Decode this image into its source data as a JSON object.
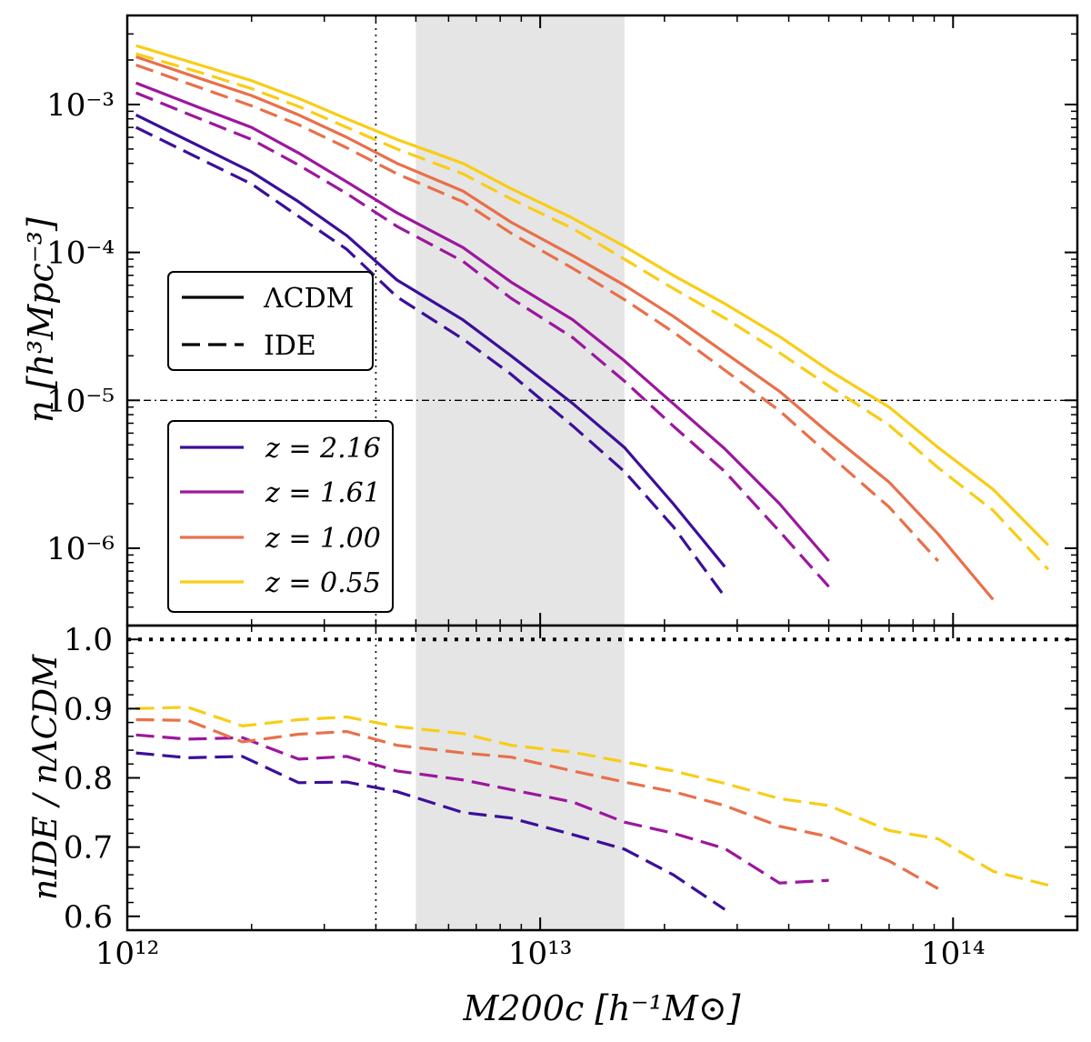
{
  "chart_data": [
    {
      "type": "line",
      "panel": "top",
      "ylabel": "n [h³Mpc⁻³]",
      "xscale": "log",
      "yscale": "log",
      "xlim": [
        1000000000000.0,
        200000000000000.0
      ],
      "ylim": [
        3e-07,
        0.004
      ],
      "y_tick_labels": [
        "10⁻⁶",
        "10⁻⁵",
        "10⁻⁴",
        "10⁻³"
      ],
      "y_ticks": [
        1e-06,
        1e-05,
        0.0001,
        0.001
      ],
      "hline": 1e-05,
      "vline": 4000000000000.0,
      "shaded_x": [
        5000000000000.0,
        16000000000000.0
      ],
      "style_legend": {
        "placement": "center-left",
        "entries": [
          {
            "label": "ΛCDM",
            "style": "solid"
          },
          {
            "label": "IDE",
            "style": "dashed"
          }
        ]
      },
      "color_legend": {
        "placement": "lower-left",
        "entries": [
          {
            "label": "z = 2.16",
            "color": "#3b0f9a"
          },
          {
            "label": "z = 1.61",
            "color": "#9c179e"
          },
          {
            "label": "z = 1.00",
            "color": "#e8704a"
          },
          {
            "label": "z = 0.55",
            "color": "#f8cd16"
          }
        ]
      },
      "series": [
        {
          "z": "2.16",
          "model": "LCDM",
          "color": "#3b0f9a",
          "style": "solid",
          "x": [
            1050000000000.0,
            1500000000000.0,
            2000000000000.0,
            2600000000000.0,
            3400000000000.0,
            4500000000000.0,
            6500000000000.0,
            8500000000000.0,
            12000000000000.0,
            16000000000000.0,
            21000000000000.0,
            28000000000000.0
          ],
          "y": [
            0.00085,
            0.00052,
            0.00035,
            0.00022,
            0.00013,
            6.5e-05,
            3.5e-05,
            2e-05,
            9.5e-06,
            4.8e-06,
            2e-06,
            7.5e-07
          ]
        },
        {
          "z": "2.16",
          "model": "IDE",
          "color": "#3b0f9a",
          "style": "dashed",
          "x": [
            1050000000000.0,
            1500000000000.0,
            2000000000000.0,
            2600000000000.0,
            3400000000000.0,
            4500000000000.0,
            6500000000000.0,
            8500000000000.0,
            12000000000000.0,
            16000000000000.0,
            21000000000000.0,
            28000000000000.0
          ],
          "y": [
            0.0007,
            0.00043,
            0.00029,
            0.000175,
            0.000105,
            5e-05,
            2.6e-05,
            1.5e-05,
            6.7e-06,
            3.3e-06,
            1.4e-06,
            4.7e-07
          ]
        },
        {
          "z": "1.61",
          "model": "LCDM",
          "color": "#9c179e",
          "style": "solid",
          "x": [
            1050000000000.0,
            1500000000000.0,
            2000000000000.0,
            2600000000000.0,
            3400000000000.0,
            4500000000000.0,
            6500000000000.0,
            8500000000000.0,
            12000000000000.0,
            16000000000000.0,
            21000000000000.0,
            28000000000000.0,
            38000000000000.0,
            50000000000000.0
          ],
          "y": [
            0.0014,
            0.00095,
            0.0007,
            0.00047,
            0.0003,
            0.000185,
            0.000108,
            6.3e-05,
            3.5e-05,
            1.85e-05,
            9.5e-06,
            4.7e-06,
            2e-06,
            8.2e-07
          ]
        },
        {
          "z": "1.61",
          "model": "IDE",
          "color": "#9c179e",
          "style": "dashed",
          "x": [
            1050000000000.0,
            1500000000000.0,
            2000000000000.0,
            2600000000000.0,
            3400000000000.0,
            4500000000000.0,
            6500000000000.0,
            8500000000000.0,
            12000000000000.0,
            16000000000000.0,
            21000000000000.0,
            28000000000000.0,
            38000000000000.0,
            50000000000000.0
          ],
          "y": [
            0.0012,
            0.0008,
            0.00058,
            0.00039,
            0.00025,
            0.00015,
            8.7e-05,
            4.9e-05,
            2.65e-05,
            1.35e-05,
            6.7e-06,
            3.3e-06,
            1.3e-06,
            5.5e-07
          ]
        },
        {
          "z": "1.00",
          "model": "LCDM",
          "color": "#e8704a",
          "style": "solid",
          "x": [
            1050000000000.0,
            1500000000000.0,
            2000000000000.0,
            2600000000000.0,
            3400000000000.0,
            4500000000000.0,
            6500000000000.0,
            8500000000000.0,
            12000000000000.0,
            16000000000000.0,
            21000000000000.0,
            28000000000000.0,
            38000000000000.0,
            50000000000000.0,
            70000000000000.0,
            92000000000000.0,
            125000000000000.0
          ],
          "y": [
            0.0021,
            0.0015,
            0.00115,
            0.00085,
            0.0006,
            0.0004,
            0.00026,
            0.00016,
            9.5e-05,
            6e-05,
            3.7e-05,
            2.1e-05,
            1.15e-05,
            6e-06,
            2.8e-06,
            1.25e-06,
            4.5e-07
          ]
        },
        {
          "z": "1.00",
          "model": "IDE",
          "color": "#e8704a",
          "style": "dashed",
          "x": [
            1050000000000.0,
            1500000000000.0,
            2000000000000.0,
            2600000000000.0,
            3400000000000.0,
            4500000000000.0,
            6500000000000.0,
            8500000000000.0,
            12000000000000.0,
            16000000000000.0,
            21000000000000.0,
            28000000000000.0,
            38000000000000.0,
            50000000000000.0,
            70000000000000.0,
            92000000000000.0
          ],
          "y": [
            0.00185,
            0.0013,
            0.00098,
            0.00073,
            0.00051,
            0.00034,
            0.00022,
            0.000135,
            7.8e-05,
            4.8e-05,
            2.9e-05,
            1.6e-05,
            8.5e-06,
            4.3e-06,
            1.9e-06,
            8.2e-07
          ]
        },
        {
          "z": "0.55",
          "model": "LCDM",
          "color": "#f8cd16",
          "style": "solid",
          "x": [
            1050000000000.0,
            1500000000000.0,
            2000000000000.0,
            2600000000000.0,
            3400000000000.0,
            4500000000000.0,
            6500000000000.0,
            8500000000000.0,
            12000000000000.0,
            16000000000000.0,
            21000000000000.0,
            28000000000000.0,
            38000000000000.0,
            50000000000000.0,
            70000000000000.0,
            92000000000000.0,
            125000000000000.0,
            170000000000000.0
          ],
          "y": [
            0.0025,
            0.00185,
            0.00145,
            0.0011,
            0.0008,
            0.00058,
            0.0004,
            0.00027,
            0.00017,
            0.00011,
            7e-05,
            4.5e-05,
            2.7e-05,
            1.6e-05,
            9e-06,
            4.8e-06,
            2.5e-06,
            1.05e-06
          ]
        },
        {
          "z": "0.55",
          "model": "IDE",
          "color": "#f8cd16",
          "style": "dashed",
          "x": [
            1050000000000.0,
            1500000000000.0,
            2000000000000.0,
            2600000000000.0,
            3400000000000.0,
            4500000000000.0,
            6500000000000.0,
            8500000000000.0,
            12000000000000.0,
            16000000000000.0,
            21000000000000.0,
            28000000000000.0,
            38000000000000.0,
            50000000000000.0,
            70000000000000.0,
            92000000000000.0,
            125000000000000.0,
            170000000000000.0
          ],
          "y": [
            0.0022,
            0.00165,
            0.00128,
            0.00097,
            0.0007,
            0.0005,
            0.00034,
            0.00023,
            0.000145,
            9e-05,
            5.7e-05,
            3.6e-05,
            2.1e-05,
            1.25e-05,
            6.8e-06,
            3.5e-06,
            1.8e-06,
            7.2e-07
          ]
        }
      ]
    },
    {
      "type": "line",
      "panel": "bottom",
      "xlabel": "M200c [h⁻¹M⊙]",
      "ylabel": "nIDE / nΛCDM",
      "xscale": "log",
      "xlim": [
        1000000000000.0,
        200000000000000.0
      ],
      "ylim": [
        0.58,
        1.02
      ],
      "x_tick_labels": [
        "10¹²",
        "10¹³",
        "10¹⁴"
      ],
      "x_ticks": [
        1000000000000.0,
        10000000000000.0,
        100000000000000.0
      ],
      "y_tick_labels": [
        "0.6",
        "0.7",
        "0.8",
        "0.9",
        "1.0"
      ],
      "y_ticks": [
        0.6,
        0.7,
        0.8,
        0.9,
        1.0
      ],
      "hline": 1.0,
      "vline": 4000000000000.0,
      "shaded_x": [
        5000000000000.0,
        16000000000000.0
      ],
      "series": [
        {
          "z": "2.16",
          "color": "#3b0f9a",
          "x": [
            1050000000000.0,
            1400000000000.0,
            1900000000000.0,
            2600000000000.0,
            3400000000000.0,
            4500000000000.0,
            6500000000000.0,
            8500000000000.0,
            12000000000000.0,
            16000000000000.0,
            21000000000000.0,
            28000000000000.0
          ],
          "y": [
            0.836,
            0.829,
            0.831,
            0.793,
            0.794,
            0.78,
            0.75,
            0.742,
            0.718,
            0.697,
            0.66,
            0.61
          ]
        },
        {
          "z": "1.61",
          "color": "#9c179e",
          "x": [
            1050000000000.0,
            1400000000000.0,
            1900000000000.0,
            2600000000000.0,
            3400000000000.0,
            4500000000000.0,
            6500000000000.0,
            8500000000000.0,
            12000000000000.0,
            16000000000000.0,
            21000000000000.0,
            28000000000000.0,
            38000000000000.0,
            50000000000000.0
          ],
          "y": [
            0.862,
            0.856,
            0.858,
            0.827,
            0.831,
            0.81,
            0.797,
            0.783,
            0.765,
            0.736,
            0.72,
            0.698,
            0.648,
            0.652
          ]
        },
        {
          "z": "1.00",
          "color": "#e8704a",
          "x": [
            1050000000000.0,
            1400000000000.0,
            1900000000000.0,
            2600000000000.0,
            3400000000000.0,
            4500000000000.0,
            6500000000000.0,
            8500000000000.0,
            12000000000000.0,
            16000000000000.0,
            21000000000000.0,
            28000000000000.0,
            38000000000000.0,
            50000000000000.0,
            70000000000000.0,
            92000000000000.0
          ],
          "y": [
            0.884,
            0.883,
            0.852,
            0.863,
            0.867,
            0.847,
            0.836,
            0.83,
            0.81,
            0.794,
            0.78,
            0.76,
            0.73,
            0.715,
            0.68,
            0.64
          ]
        },
        {
          "z": "0.55",
          "color": "#f8cd16",
          "x": [
            1050000000000.0,
            1400000000000.0,
            1900000000000.0,
            2600000000000.0,
            3400000000000.0,
            4500000000000.0,
            6500000000000.0,
            8500000000000.0,
            12000000000000.0,
            16000000000000.0,
            21000000000000.0,
            28000000000000.0,
            38000000000000.0,
            50000000000000.0,
            70000000000000.0,
            92000000000000.0,
            125000000000000.0,
            170000000000000.0
          ],
          "y": [
            0.9,
            0.902,
            0.875,
            0.884,
            0.888,
            0.874,
            0.864,
            0.847,
            0.837,
            0.823,
            0.81,
            0.792,
            0.77,
            0.76,
            0.724,
            0.712,
            0.665,
            0.645
          ]
        }
      ]
    }
  ]
}
